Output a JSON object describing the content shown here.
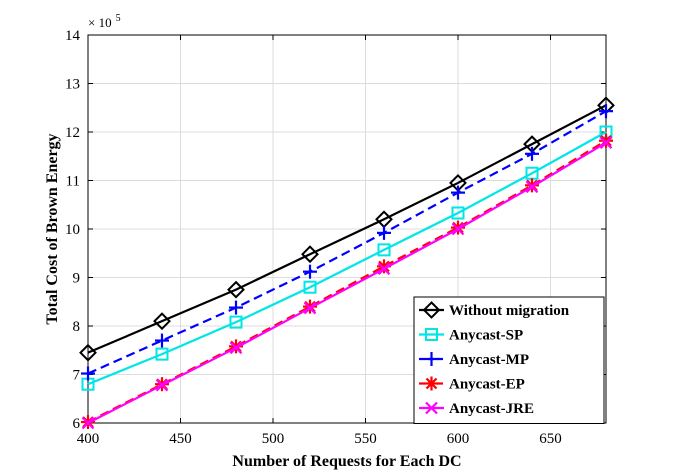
{
  "chart_data": {
    "type": "line",
    "xlabel": "Number of Requests for Each DC",
    "ylabel": "Total Cost of Brown Energy",
    "y_multiplier": {
      "base": "× 10",
      "exponent": "5"
    },
    "xlim": [
      400,
      680
    ],
    "ylim": [
      6,
      14
    ],
    "x_ticks": [
      400,
      450,
      500,
      550,
      600,
      650
    ],
    "y_ticks": [
      6,
      7,
      8,
      9,
      10,
      11,
      12,
      13,
      14
    ],
    "grid": true,
    "legend_position": "bottom-right",
    "x": [
      400,
      440,
      480,
      520,
      560,
      600,
      640,
      680
    ],
    "series": [
      {
        "name": "Without migration",
        "color": "#000000",
        "marker": "diamond",
        "dash": "solid",
        "values": [
          7.45,
          8.1,
          8.75,
          9.48,
          10.2,
          10.95,
          11.75,
          12.55
        ]
      },
      {
        "name": "Anycast-SP",
        "color": "#00e5e5",
        "marker": "square",
        "dash": "solid",
        "values": [
          6.8,
          7.42,
          8.08,
          8.8,
          9.57,
          10.33,
          11.15,
          12.0
        ]
      },
      {
        "name": "Anycast-MP",
        "color": "#0000ff",
        "marker": "plus",
        "dash": "dashed",
        "values": [
          7.02,
          7.7,
          8.38,
          9.12,
          9.92,
          10.75,
          11.55,
          12.43
        ]
      },
      {
        "name": "Anycast-EP",
        "color": "#ff0000",
        "marker": "asterisk",
        "dash": "dashed",
        "values": [
          6.02,
          6.8,
          7.58,
          8.4,
          9.23,
          10.03,
          10.9,
          11.82
        ]
      },
      {
        "name": "Anycast-JRE",
        "color": "#ff00ff",
        "marker": "x",
        "dash": "solid",
        "values": [
          6.0,
          6.78,
          7.55,
          8.37,
          9.18,
          10.0,
          10.87,
          11.78
        ]
      }
    ]
  }
}
